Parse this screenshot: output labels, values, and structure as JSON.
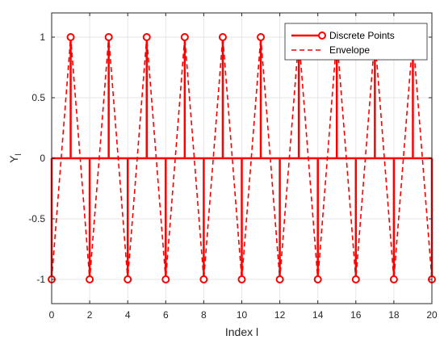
{
  "chart_data": {
    "type": "line",
    "xlabel": "Index l",
    "ylabel": "Υ",
    "ylabel_subscript": "l",
    "xlim": [
      0,
      20
    ],
    "ylim": [
      -1.2,
      1.2
    ],
    "x_ticks": [
      "0",
      "2",
      "4",
      "6",
      "8",
      "10",
      "12",
      "14",
      "16",
      "18",
      "20"
    ],
    "y_ticks": [
      "-1",
      "-0.5",
      "0",
      "0.5",
      "1"
    ],
    "grid": true,
    "legend_position": "top-right",
    "series": [
      {
        "name": "Discrete Points",
        "style": "stem",
        "marker": "circle",
        "x": [
          0,
          1,
          2,
          3,
          4,
          5,
          6,
          7,
          8,
          9,
          10,
          11,
          12,
          13,
          14,
          15,
          16,
          17,
          18,
          19,
          20
        ],
        "values": [
          -1,
          1,
          -1,
          1,
          -1,
          1,
          -1,
          1,
          -1,
          1,
          -1,
          1,
          -1,
          1,
          -1,
          1,
          -1,
          1,
          -1,
          1,
          -1
        ]
      },
      {
        "name": "Envelope",
        "style": "dashed",
        "x": [
          0,
          1,
          2,
          3,
          4,
          5,
          6,
          7,
          8,
          9,
          10,
          11,
          12,
          13,
          14,
          15,
          16,
          17,
          18,
          19,
          20
        ],
        "values": [
          -1,
          1,
          -1,
          1,
          -1,
          1,
          -1,
          1,
          -1,
          1,
          -1,
          1,
          -1,
          1,
          -1,
          1,
          -1,
          1,
          -1,
          1,
          -1
        ]
      }
    ],
    "colors": {
      "series": "#ff0000",
      "grid": "#e6e6e6",
      "axes": "#262626"
    }
  }
}
